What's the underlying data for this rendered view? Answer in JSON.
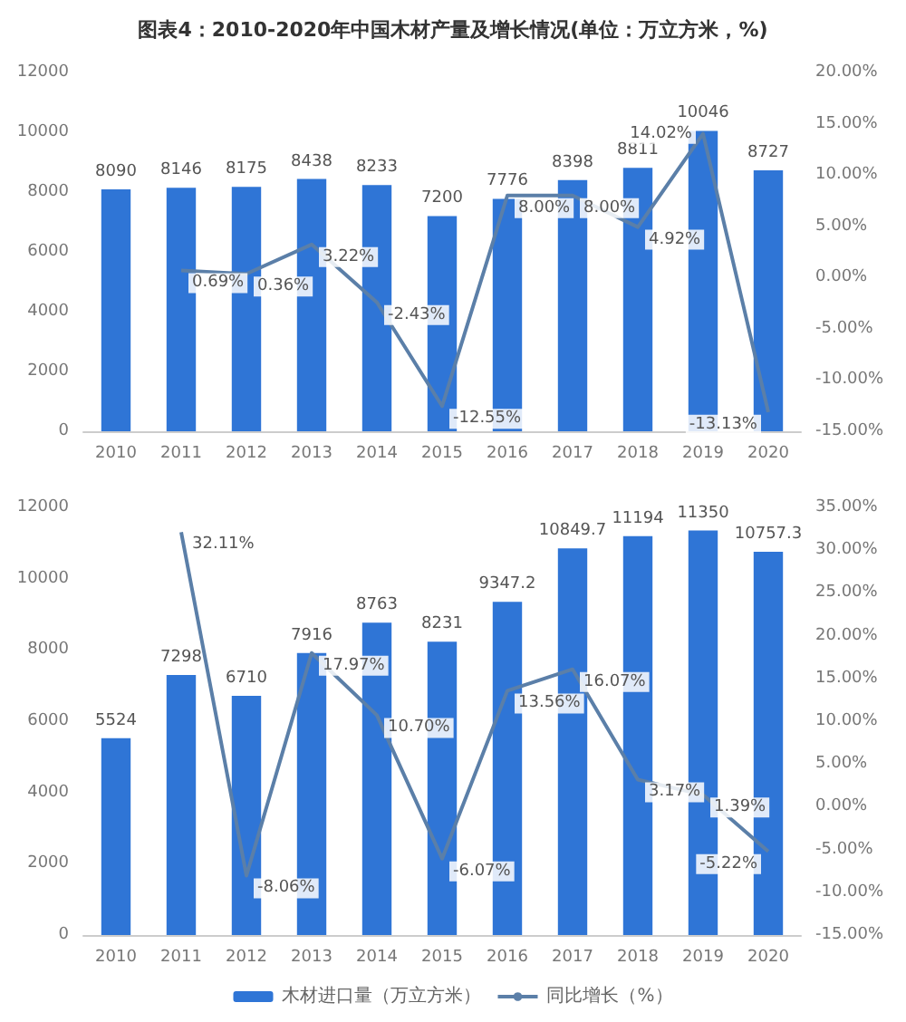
{
  "chart_data": [
    {
      "type": "bar",
      "title": "图表4：2010-2020年中国木材产量及增长情况(单位：万立方米，%)",
      "categories": [
        "2010",
        "2011",
        "2012",
        "2013",
        "2014",
        "2015",
        "2016",
        "2017",
        "2018",
        "2019",
        "2020"
      ],
      "series": [
        {
          "color": "#2f75d6",
          "values": [
            8090,
            8146,
            8175,
            8438,
            8233,
            7200,
            7776,
            8398,
            8811,
            10046,
            8727
          ],
          "value_labels": [
            "8090",
            "8146",
            "8175",
            "8438",
            "8233",
            "7200",
            "7776",
            "8398",
            "8811",
            "10046",
            "8727"
          ]
        },
        {
          "type": "line",
          "axis": "y2",
          "color": "#5b7fa8",
          "values": [
            null,
            0.69,
            0.36,
            3.22,
            -2.43,
            -12.55,
            8.0,
            8.0,
            4.92,
            14.02,
            -13.13
          ],
          "value_labels": [
            null,
            "0.69%",
            "0.36%",
            "3.22%",
            "-2.43%",
            "-12.55%",
            "8.00%",
            "8.00%",
            "4.92%",
            "14.02%",
            "-13.13%"
          ]
        }
      ],
      "ylim": [
        0,
        12000
      ],
      "yticks": [
        0,
        2000,
        4000,
        6000,
        8000,
        10000,
        12000
      ],
      "y2lim": [
        -15,
        20
      ],
      "y2ticks": [
        {
          "value": -15,
          "label": "-15.00%"
        },
        {
          "value": -10,
          "label": "-10.00%"
        },
        {
          "value": -5,
          "label": "-5.00%"
        },
        {
          "value": 0,
          "label": "0.00%"
        },
        {
          "value": 5,
          "label": "5.00%"
        },
        {
          "value": 10,
          "label": "10.00%"
        },
        {
          "value": 15,
          "label": "15.00%"
        },
        {
          "value": 20,
          "label": "20.00%"
        }
      ],
      "marker": "none",
      "line_style": "solid"
    },
    {
      "type": "bar",
      "categories": [
        "2010",
        "2011",
        "2012",
        "2013",
        "2014",
        "2015",
        "2016",
        "2017",
        "2018",
        "2019",
        "2020"
      ],
      "series": [
        {
          "name": "木材进口量（万立方米）",
          "color": "#2f75d6",
          "values": [
            5524,
            7298,
            6710,
            7916,
            8763,
            8231,
            9347.2,
            10849.7,
            11194,
            11350,
            10757.3
          ],
          "value_labels": [
            "5524",
            "7298",
            "6710",
            "7916",
            "8763",
            "8231",
            "9347.2",
            "10849.7",
            "11194",
            "11350",
            "10757.3"
          ]
        },
        {
          "type": "line",
          "name": "同比增长（%）",
          "axis": "y2",
          "color": "#5b7fa8",
          "values": [
            null,
            32.11,
            -8.06,
            17.97,
            10.7,
            -6.07,
            13.56,
            16.07,
            3.17,
            1.39,
            -5.22
          ],
          "value_labels": [
            null,
            "32.11%",
            "-8.06%",
            "17.97%",
            "10.70%",
            "-6.07%",
            "13.56%",
            "16.07%",
            "3.17%",
            "1.39%",
            "-5.22%"
          ]
        }
      ],
      "ylim": [
        0,
        12000
      ],
      "yticks": [
        0,
        2000,
        4000,
        6000,
        8000,
        10000,
        12000
      ],
      "y2lim": [
        -15,
        35
      ],
      "y2ticks": [
        {
          "value": -15,
          "label": "-15.00%"
        },
        {
          "value": -10,
          "label": "-10.00%"
        },
        {
          "value": -5,
          "label": "-5.00%"
        },
        {
          "value": 0,
          "label": "0.00%"
        },
        {
          "value": 5,
          "label": "5.00%"
        },
        {
          "value": 10,
          "label": "10.00%"
        },
        {
          "value": 15,
          "label": "15.00%"
        },
        {
          "value": 20,
          "label": "20.00%"
        },
        {
          "value": 25,
          "label": "25.00%"
        },
        {
          "value": 30,
          "label": "30.00%"
        },
        {
          "value": 35,
          "label": "35.00%"
        }
      ],
      "legend": "bottom",
      "marker": "none",
      "line_style": "solid"
    }
  ]
}
